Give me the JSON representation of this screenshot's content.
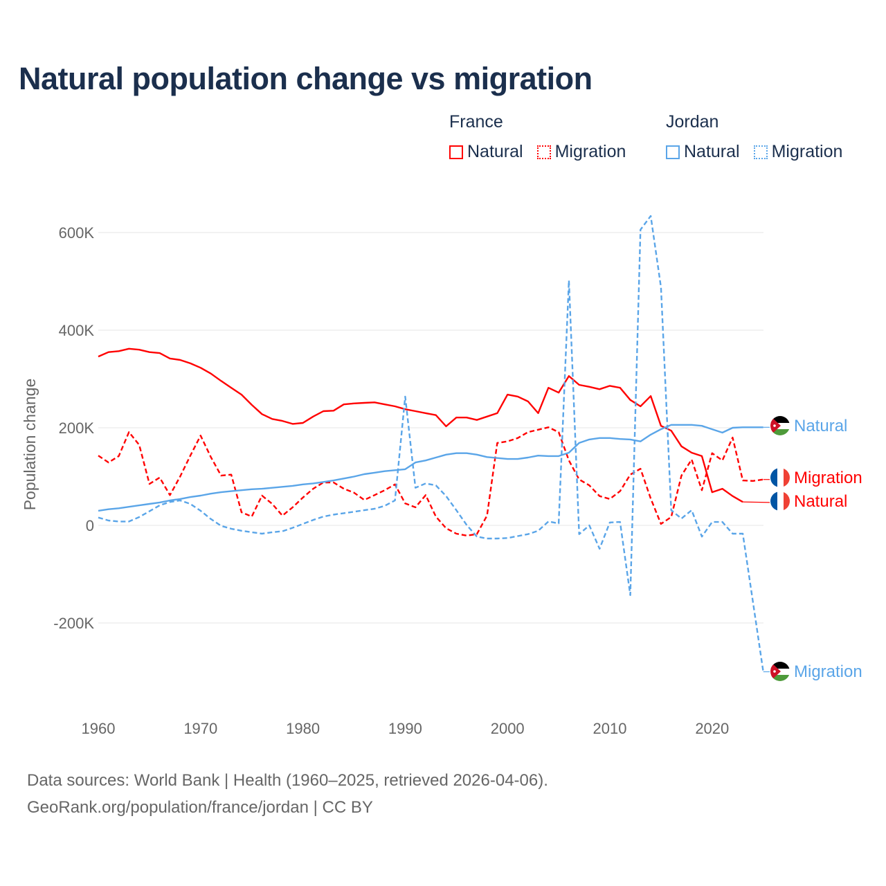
{
  "title": "Natural population change vs migration",
  "legend": {
    "groups": [
      {
        "name": "France",
        "items": [
          {
            "label": "Natural",
            "style": "solid"
          },
          {
            "label": "Migration",
            "style": "dotted"
          }
        ],
        "color": "#ff0000"
      },
      {
        "name": "Jordan",
        "items": [
          {
            "label": "Natural",
            "style": "solid"
          },
          {
            "label": "Migration",
            "style": "dotted"
          }
        ],
        "color": "#5aa5e8"
      }
    ]
  },
  "footer": {
    "line1": "Data sources: World Bank | Health (1960–2025, retrieved 2026-04-06).",
    "line2": "GeoRank.org/population/france/jordan | CC BY"
  },
  "chart_data": {
    "type": "line",
    "title": "Natural population change vs migration",
    "xlabel": "",
    "ylabel": "Population change",
    "xlim": [
      1960,
      2025
    ],
    "ylim": [
      -300000,
      640000
    ],
    "x_ticks": [
      1960,
      1970,
      1980,
      1990,
      2000,
      2010,
      2020
    ],
    "x_tick_labels": [
      "1960",
      "1970",
      "1980",
      "1990",
      "2000",
      "2010",
      "2020"
    ],
    "y_ticks": [
      600000,
      400000,
      200000,
      0,
      -200000
    ],
    "y_tick_labels": [
      "600K",
      "400K",
      "200K",
      "0",
      "-200K"
    ],
    "grid": true,
    "legend_position": "top-right",
    "x_start": 1960,
    "series": [
      {
        "name": "France Natural",
        "country": "France",
        "kind": "Natural",
        "end_label": "Natural",
        "color": "#ff0000",
        "dash": "solid",
        "values_k": [
          346,
          355,
          357,
          362,
          360,
          355,
          353,
          342,
          339,
          332,
          323,
          311,
          296,
          282,
          268,
          247,
          228,
          218,
          214,
          208,
          210,
          223,
          234,
          235,
          248,
          250,
          251,
          252,
          248,
          244,
          238,
          234,
          230,
          226,
          203,
          221,
          221,
          216,
          223,
          230,
          268,
          264,
          254,
          230,
          282,
          272,
          306,
          288,
          284,
          279,
          286,
          282,
          257,
          244,
          265,
          204,
          194,
          162,
          149,
          142,
          68,
          75,
          60,
          48,
          47,
          47
        ]
      },
      {
        "name": "France Migration",
        "country": "France",
        "kind": "Migration",
        "end_label": "Migration",
        "color": "#ff0000",
        "dash": "dashed",
        "values_k": [
          143,
          129,
          142,
          191,
          165,
          85,
          98,
          62,
          100,
          143,
          184,
          140,
          102,
          104,
          27,
          18,
          61,
          44,
          20,
          37,
          57,
          75,
          88,
          88,
          75,
          67,
          52,
          62,
          72,
          84,
          45,
          37,
          62,
          18,
          -6,
          -17,
          -21,
          -18,
          20,
          169,
          172,
          179,
          191,
          196,
          201,
          191,
          133,
          94,
          82,
          60,
          54,
          70,
          104,
          116,
          55,
          3,
          17,
          102,
          135,
          72,
          148,
          133,
          180,
          92,
          91,
          94
        ]
      },
      {
        "name": "Jordan Natural",
        "country": "Jordan",
        "kind": "Natural",
        "end_label": "Natural",
        "color": "#5aa5e8",
        "dash": "solid",
        "values_k": [
          30,
          33,
          35,
          38,
          41,
          44,
          47,
          51,
          54,
          58,
          61,
          65,
          68,
          70,
          72,
          74,
          75,
          77,
          79,
          81,
          84,
          86,
          89,
          92,
          96,
          100,
          105,
          108,
          111,
          113,
          115,
          129,
          133,
          139,
          145,
          148,
          148,
          145,
          140,
          138,
          136,
          136,
          139,
          143,
          142,
          142,
          149,
          169,
          176,
          179,
          179,
          177,
          176,
          172,
          186,
          197,
          206,
          206,
          206,
          204,
          197,
          190,
          200,
          201,
          201,
          201
        ]
      },
      {
        "name": "Jordan Migration",
        "country": "Jordan",
        "kind": "Migration",
        "end_label": "Migration",
        "color": "#5aa5e8",
        "dash": "dashed",
        "values_k": [
          16,
          10,
          8,
          8,
          17,
          29,
          41,
          48,
          51,
          44,
          30,
          13,
          -1,
          -7,
          -11,
          -14,
          -17,
          -14,
          -12,
          -5,
          3,
          11,
          18,
          22,
          25,
          28,
          31,
          34,
          40,
          51,
          264,
          77,
          86,
          82,
          60,
          31,
          1,
          -23,
          -27,
          -27,
          -26,
          -22,
          -18,
          -11,
          8,
          4,
          502,
          -18,
          0,
          -48,
          6,
          7,
          -143,
          606,
          634,
          488,
          31,
          14,
          31,
          -23,
          7,
          7,
          -17,
          -17,
          -158,
          -300
        ]
      }
    ]
  }
}
